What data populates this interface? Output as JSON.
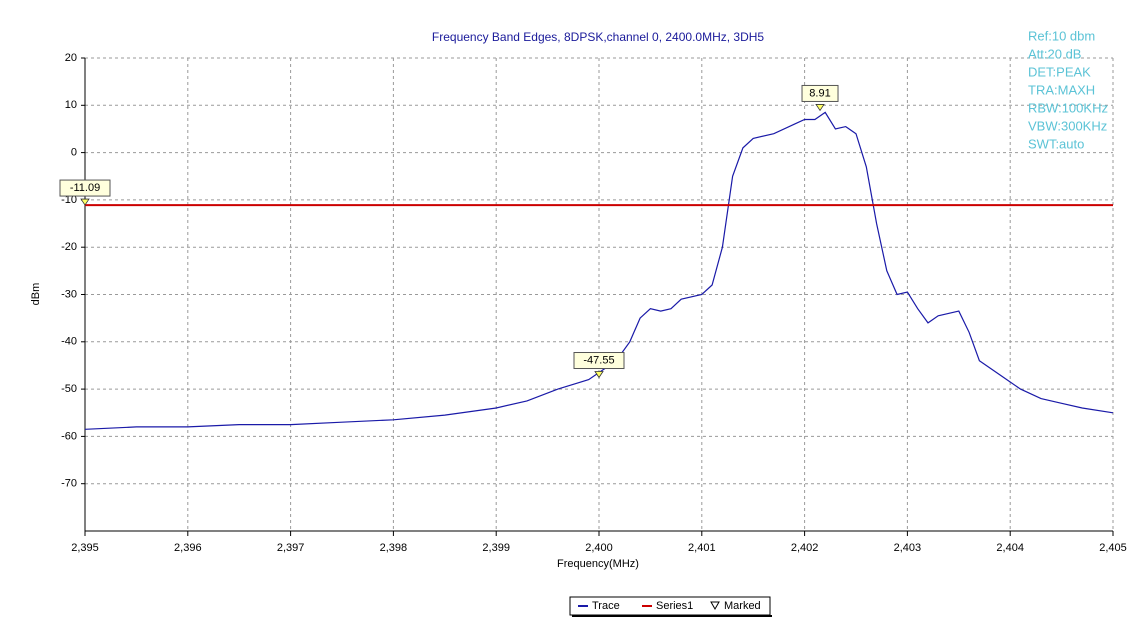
{
  "chart_data": {
    "type": "line",
    "title": "Frequency Band Edges, 8DPSK,channel 0, 2400.0MHz, 3DH5",
    "x_label": "Frequency(MHz)",
    "y_label": "dBm",
    "xlim": [
      2395,
      2405
    ],
    "xticks": [
      {
        "value": 2395,
        "label": "2,395"
      },
      {
        "value": 2396,
        "label": "2,396"
      },
      {
        "value": 2397,
        "label": "2,397"
      },
      {
        "value": 2398,
        "label": "2,398"
      },
      {
        "value": 2399,
        "label": "2,399"
      },
      {
        "value": 2400,
        "label": "2,400"
      },
      {
        "value": 2401,
        "label": "2,401"
      },
      {
        "value": 2402,
        "label": "2,402"
      },
      {
        "value": 2403,
        "label": "2,403"
      },
      {
        "value": 2404,
        "label": "2,404"
      },
      {
        "value": 2405,
        "label": "2,405"
      }
    ],
    "ylim": [
      -80,
      20
    ],
    "yticks": [
      -70,
      -60,
      -50,
      -40,
      -30,
      -20,
      -10,
      0,
      10,
      20
    ],
    "grid": true,
    "legend": "bottom",
    "annotations": [
      "Ref:10 dbm",
      "Att:20 dB",
      "DET:PEAK",
      "TRA:MAXH",
      "RBW:100KHz",
      "VBW:300KHz",
      "SWT:auto"
    ],
    "series": [
      {
        "name": "Trace",
        "color": "#1a1aa8",
        "x": [
          2395,
          2395.5,
          2396,
          2396.5,
          2397,
          2397.5,
          2398,
          2398.5,
          2399,
          2399.3,
          2399.6,
          2399.9,
          2400.1,
          2400.2,
          2400.3,
          2400.4,
          2400.5,
          2400.6,
          2400.7,
          2400.8,
          2401,
          2401.1,
          2401.2,
          2401.3,
          2401.4,
          2401.5,
          2401.7,
          2401.9,
          2402,
          2402.1,
          2402.2,
          2402.3,
          2402.4,
          2402.5,
          2402.6,
          2402.7,
          2402.8,
          2402.9,
          2403,
          2403.1,
          2403.2,
          2403.3,
          2403.4,
          2403.5,
          2403.6,
          2403.7,
          2403.9,
          2404.1,
          2404.3,
          2404.5,
          2404.7,
          2405
        ],
        "values": [
          -58.5,
          -58,
          -58,
          -57.5,
          -57.5,
          -57,
          -56.5,
          -55.5,
          -54,
          -52.5,
          -50,
          -48,
          -45,
          -43,
          -40,
          -35,
          -33,
          -33.5,
          -33,
          -31,
          -30,
          -28,
          -20,
          -5,
          1,
          3,
          4,
          6,
          7,
          7,
          8.5,
          5,
          5.5,
          4,
          -3,
          -15,
          -25,
          -30,
          -29.5,
          -33,
          -36,
          -34.5,
          -34,
          -33.5,
          -38,
          -44,
          -47,
          -50,
          -52,
          -53,
          -54,
          -55
        ]
      },
      {
        "name": "Series1",
        "color": "#cc0000",
        "x": [
          2395,
          2405
        ],
        "values": [
          -11.09,
          -11.09
        ]
      },
      {
        "name": "Marked",
        "color": "#ffff66",
        "x": [
          2395,
          2400,
          2402.15
        ],
        "values": [
          -11.09,
          -47.55,
          8.91
        ]
      }
    ]
  }
}
